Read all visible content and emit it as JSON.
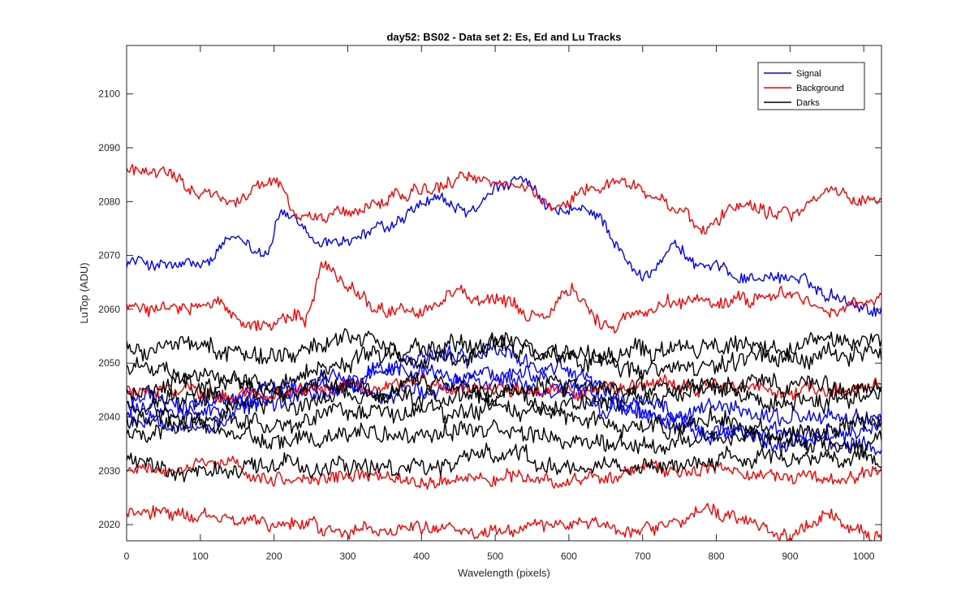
{
  "chart_data": {
    "type": "line",
    "title": "day52: BS02 - Data set 2: Es, Ed and Lu Tracks",
    "xlabel": "Wavelength (pixels)",
    "ylabel": "LuTop (ADU)",
    "xlim": [
      0,
      1024
    ],
    "ylim": [
      2017,
      2109
    ],
    "xticks": [
      0,
      100,
      200,
      300,
      400,
      500,
      600,
      700,
      800,
      900,
      1000
    ],
    "yticks": [
      2020,
      2030,
      2040,
      2050,
      2060,
      2070,
      2080,
      2090,
      2100
    ],
    "grid": false,
    "legend_position": "top-right",
    "legend": [
      {
        "name": "Signal",
        "color": "#0000ff"
      },
      {
        "name": "Background",
        "color": "#ff0000"
      },
      {
        "name": "Darks",
        "color": "#000000"
      }
    ],
    "series": [
      {
        "group": "Signal",
        "color": "#0000ff",
        "knots": [
          [
            0,
            2069
          ],
          [
            60,
            2068
          ],
          [
            100,
            2068
          ],
          [
            150,
            2073
          ],
          [
            190,
            2071
          ],
          [
            210,
            2078
          ],
          [
            260,
            2072
          ],
          [
            300,
            2073
          ],
          [
            350,
            2075
          ],
          [
            420,
            2080
          ],
          [
            460,
            2078
          ],
          [
            530,
            2084
          ],
          [
            580,
            2078
          ],
          [
            630,
            2078
          ],
          [
            700,
            2066
          ],
          [
            740,
            2072
          ],
          [
            780,
            2068
          ],
          [
            850,
            2066
          ],
          [
            900,
            2066
          ],
          [
            950,
            2063
          ],
          [
            1024,
            2060
          ]
        ],
        "noise": 1.1
      },
      {
        "group": "Signal",
        "color": "#0000ff",
        "knots": [
          [
            0,
            2040
          ],
          [
            100,
            2038
          ],
          [
            200,
            2043
          ],
          [
            300,
            2048
          ],
          [
            400,
            2051
          ],
          [
            500,
            2052
          ],
          [
            600,
            2048
          ],
          [
            700,
            2041
          ],
          [
            800,
            2038
          ],
          [
            900,
            2036
          ],
          [
            1024,
            2034
          ]
        ],
        "noise": 1.5
      },
      {
        "group": "Signal",
        "color": "#0000ff",
        "knots": [
          [
            0,
            2042
          ],
          [
            100,
            2041
          ],
          [
            200,
            2044
          ],
          [
            300,
            2046
          ],
          [
            400,
            2049
          ],
          [
            500,
            2047
          ],
          [
            600,
            2045
          ],
          [
            700,
            2040
          ],
          [
            800,
            2041
          ],
          [
            900,
            2040
          ],
          [
            1024,
            2040
          ]
        ],
        "noise": 1.5
      },
      {
        "group": "Signal",
        "color": "#0000ff",
        "knots": [
          [
            0,
            2044
          ],
          [
            100,
            2042
          ],
          [
            200,
            2046
          ],
          [
            300,
            2045
          ],
          [
            400,
            2044
          ],
          [
            500,
            2049
          ],
          [
            600,
            2046
          ],
          [
            700,
            2042
          ],
          [
            800,
            2038
          ],
          [
            900,
            2035
          ],
          [
            1024,
            2038
          ]
        ],
        "noise": 1.5
      },
      {
        "group": "Background",
        "color": "#ff0000",
        "knots": [
          [
            0,
            2085
          ],
          [
            50,
            2086
          ],
          [
            100,
            2082
          ],
          [
            150,
            2080
          ],
          [
            200,
            2084
          ],
          [
            240,
            2077
          ],
          [
            300,
            2078
          ],
          [
            350,
            2080
          ],
          [
            420,
            2083
          ],
          [
            480,
            2084
          ],
          [
            530,
            2083
          ],
          [
            580,
            2079
          ],
          [
            620,
            2082
          ],
          [
            680,
            2084
          ],
          [
            720,
            2080
          ],
          [
            780,
            2076
          ],
          [
            850,
            2080
          ],
          [
            900,
            2078
          ],
          [
            960,
            2082
          ],
          [
            1024,
            2080
          ]
        ],
        "noise": 1.2
      },
      {
        "group": "Background",
        "color": "#ff0000",
        "knots": [
          [
            0,
            2061
          ],
          [
            60,
            2060
          ],
          [
            120,
            2061
          ],
          [
            180,
            2057
          ],
          [
            240,
            2058
          ],
          [
            270,
            2068
          ],
          [
            300,
            2064
          ],
          [
            350,
            2060
          ],
          [
            400,
            2060
          ],
          [
            450,
            2063
          ],
          [
            500,
            2061
          ],
          [
            560,
            2058
          ],
          [
            600,
            2063
          ],
          [
            650,
            2057
          ],
          [
            700,
            2059
          ],
          [
            750,
            2062
          ],
          [
            800,
            2061
          ],
          [
            850,
            2062
          ],
          [
            900,
            2063
          ],
          [
            950,
            2060
          ],
          [
            1024,
            2062
          ]
        ],
        "noise": 1.2
      },
      {
        "group": "Background",
        "color": "#ff0000",
        "knots": [
          [
            0,
            2045
          ],
          [
            150,
            2044
          ],
          [
            300,
            2046
          ],
          [
            450,
            2046
          ],
          [
            600,
            2045
          ],
          [
            750,
            2046
          ],
          [
            900,
            2045
          ],
          [
            1024,
            2046
          ]
        ],
        "noise": 1.2
      },
      {
        "group": "Background",
        "color": "#ff0000",
        "knots": [
          [
            0,
            2030
          ],
          [
            100,
            2031
          ],
          [
            200,
            2028
          ],
          [
            300,
            2029
          ],
          [
            400,
            2028
          ],
          [
            500,
            2029
          ],
          [
            600,
            2028
          ],
          [
            700,
            2030
          ],
          [
            800,
            2030
          ],
          [
            900,
            2029
          ],
          [
            1024,
            2029
          ]
        ],
        "noise": 1.2
      },
      {
        "group": "Background",
        "color": "#ff0000",
        "knots": [
          [
            0,
            2022
          ],
          [
            100,
            2021
          ],
          [
            200,
            2020
          ],
          [
            300,
            2019
          ],
          [
            400,
            2020
          ],
          [
            500,
            2019
          ],
          [
            600,
            2020
          ],
          [
            700,
            2019
          ],
          [
            780,
            2022
          ],
          [
            850,
            2020
          ],
          [
            900,
            2018
          ],
          [
            960,
            2022
          ],
          [
            1024,
            2018
          ]
        ],
        "noise": 1.2
      },
      {
        "group": "Darks",
        "color": "#000000",
        "knots": [
          [
            0,
            2054
          ],
          [
            100,
            2053
          ],
          [
            200,
            2051
          ],
          [
            300,
            2054
          ],
          [
            400,
            2050
          ],
          [
            500,
            2053
          ],
          [
            600,
            2051
          ],
          [
            700,
            2052
          ],
          [
            800,
            2053
          ],
          [
            900,
            2052
          ],
          [
            1024,
            2055
          ]
        ],
        "noise": 1.6
      },
      {
        "group": "Darks",
        "color": "#000000",
        "knots": [
          [
            0,
            2049
          ],
          [
            100,
            2048
          ],
          [
            200,
            2046
          ],
          [
            300,
            2050
          ],
          [
            400,
            2052
          ],
          [
            500,
            2054
          ],
          [
            600,
            2052
          ],
          [
            700,
            2048
          ],
          [
            800,
            2050
          ],
          [
            900,
            2051
          ],
          [
            1024,
            2052
          ]
        ],
        "noise": 1.6
      },
      {
        "group": "Darks",
        "color": "#000000",
        "knots": [
          [
            0,
            2045
          ],
          [
            100,
            2046
          ],
          [
            200,
            2046
          ],
          [
            300,
            2046
          ],
          [
            400,
            2044
          ],
          [
            500,
            2045
          ],
          [
            600,
            2046
          ],
          [
            700,
            2045
          ],
          [
            800,
            2045
          ],
          [
            900,
            2046
          ],
          [
            1024,
            2045
          ]
        ],
        "noise": 1.6
      },
      {
        "group": "Darks",
        "color": "#000000",
        "knots": [
          [
            0,
            2043
          ],
          [
            100,
            2044
          ],
          [
            200,
            2042
          ],
          [
            300,
            2045
          ],
          [
            400,
            2046
          ],
          [
            500,
            2045
          ],
          [
            600,
            2043
          ],
          [
            700,
            2044
          ],
          [
            800,
            2046
          ],
          [
            900,
            2043
          ],
          [
            1024,
            2044
          ]
        ],
        "noise": 1.6
      },
      {
        "group": "Darks",
        "color": "#000000",
        "knots": [
          [
            0,
            2039
          ],
          [
            100,
            2040
          ],
          [
            200,
            2038
          ],
          [
            300,
            2041
          ],
          [
            400,
            2040
          ],
          [
            500,
            2041
          ],
          [
            600,
            2040
          ],
          [
            700,
            2038
          ],
          [
            800,
            2039
          ],
          [
            900,
            2037
          ],
          [
            1024,
            2039
          ]
        ],
        "noise": 1.6
      },
      {
        "group": "Darks",
        "color": "#000000",
        "knots": [
          [
            0,
            2037
          ],
          [
            100,
            2038
          ],
          [
            200,
            2036
          ],
          [
            300,
            2037
          ],
          [
            400,
            2037
          ],
          [
            500,
            2038
          ],
          [
            600,
            2036
          ],
          [
            700,
            2035
          ],
          [
            800,
            2036
          ],
          [
            900,
            2035
          ],
          [
            1024,
            2036
          ]
        ],
        "noise": 1.6
      },
      {
        "group": "Darks",
        "color": "#000000",
        "knots": [
          [
            0,
            2032
          ],
          [
            100,
            2030
          ],
          [
            200,
            2031
          ],
          [
            300,
            2031
          ],
          [
            400,
            2031
          ],
          [
            500,
            2033
          ],
          [
            600,
            2031
          ],
          [
            700,
            2031
          ],
          [
            800,
            2032
          ],
          [
            900,
            2032
          ],
          [
            1024,
            2032
          ]
        ],
        "noise": 1.5
      }
    ]
  }
}
